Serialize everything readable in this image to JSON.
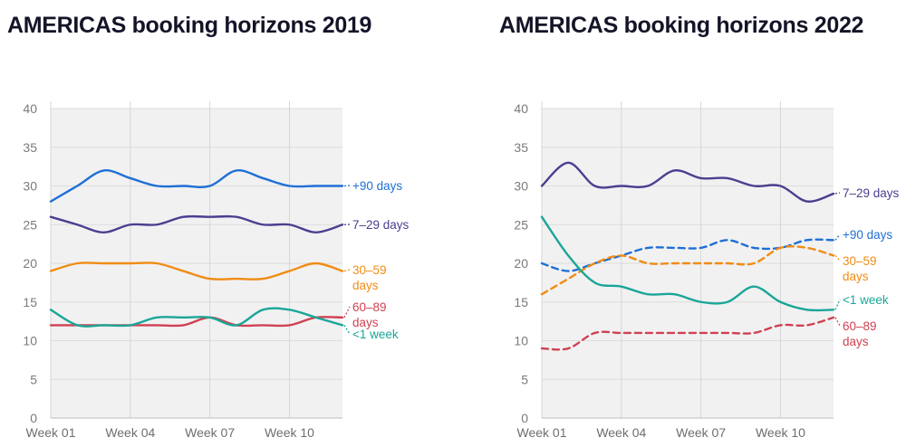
{
  "chart_data": [
    {
      "type": "line",
      "title": "AMERICAS booking horizons 2019",
      "xlabel": "",
      "ylabel": "",
      "ylim": [
        0,
        40
      ],
      "yticks": [
        0,
        5,
        10,
        15,
        20,
        25,
        30,
        35,
        40
      ],
      "x": [
        1,
        2,
        3,
        4,
        5,
        6,
        7,
        8,
        9,
        10,
        11,
        12
      ],
      "xtick_labels": [
        "Week 01",
        "Week 04",
        "Week 07",
        "Week 10"
      ],
      "xtick_positions": [
        1,
        4,
        7,
        10
      ],
      "grid": true,
      "legend": "inline labels at line ends",
      "series": [
        {
          "name": "+90 days",
          "color": "#1f6fd6",
          "dashed": false,
          "values": [
            28,
            30,
            32,
            31,
            30,
            30,
            30,
            32,
            31,
            30,
            30,
            30
          ]
        },
        {
          "name": "7–29 days",
          "color": "#4a3f8f",
          "dashed": false,
          "values": [
            26,
            25,
            24,
            25,
            25,
            26,
            26,
            26,
            25,
            25,
            24,
            25
          ]
        },
        {
          "name": "30–59 days",
          "color": "#f08c14",
          "dashed": false,
          "values": [
            19,
            20,
            20,
            20,
            20,
            19,
            18,
            18,
            18,
            19,
            20,
            19
          ]
        },
        {
          "name": "60–89 days",
          "color": "#d04152",
          "dashed": false,
          "values": [
            12,
            12,
            12,
            12,
            12,
            12,
            13,
            12,
            12,
            12,
            13,
            13
          ]
        },
        {
          "name": "<1 week",
          "color": "#1aa697",
          "dashed": false,
          "values": [
            14,
            12,
            12,
            12,
            13,
            13,
            13,
            12,
            14,
            14,
            13,
            12
          ]
        }
      ],
      "end_labels": [
        {
          "lines": [
            "+90 days"
          ],
          "color": "#1f6fd6"
        },
        {
          "lines": [
            "7–29 days"
          ],
          "color": "#4a3f8f"
        },
        {
          "lines": [
            "30–59",
            "days"
          ],
          "color": "#f08c14"
        },
        {
          "lines": [
            "60–89",
            "days"
          ],
          "color": "#d04152"
        },
        {
          "lines": [
            "<1 week"
          ],
          "color": "#1aa697"
        }
      ]
    },
    {
      "type": "line",
      "title": "AMERICAS booking horizons 2022",
      "xlabel": "",
      "ylabel": "",
      "ylim": [
        0,
        40
      ],
      "yticks": [
        0,
        5,
        10,
        15,
        20,
        25,
        30,
        35,
        40
      ],
      "x": [
        1,
        2,
        3,
        4,
        5,
        6,
        7,
        8,
        9,
        10,
        11,
        12
      ],
      "xtick_labels": [
        "Week 01",
        "Week 04",
        "Week 07",
        "Week 10"
      ],
      "xtick_positions": [
        1,
        4,
        7,
        10
      ],
      "grid": true,
      "legend": "inline labels at line ends",
      "series": [
        {
          "name": "7–29 days",
          "color": "#4a3f8f",
          "dashed": false,
          "values": [
            30,
            33,
            30,
            30,
            30,
            32,
            31,
            31,
            30,
            30,
            28,
            29
          ]
        },
        {
          "name": "+90 days",
          "color": "#1f6fd6",
          "dashed": true,
          "values": [
            20,
            19,
            20,
            21,
            22,
            22,
            22,
            23,
            22,
            22,
            23,
            23
          ]
        },
        {
          "name": "30–59 days",
          "color": "#f08c14",
          "dashed": true,
          "values": [
            16,
            18,
            20,
            21,
            20,
            20,
            20,
            20,
            20,
            22,
            22,
            21
          ]
        },
        {
          "name": "<1 week",
          "color": "#1aa697",
          "dashed": false,
          "values": [
            26,
            21,
            17.5,
            17,
            16,
            16,
            15,
            15,
            17,
            15,
            14,
            14
          ]
        },
        {
          "name": "60–89 days",
          "color": "#d04152",
          "dashed": true,
          "values": [
            9,
            9,
            11,
            11,
            11,
            11,
            11,
            11,
            11,
            12,
            12,
            13
          ]
        }
      ],
      "end_labels": [
        {
          "lines": [
            "7–29 days"
          ],
          "color": "#4a3f8f"
        },
        {
          "lines": [
            "+90 days"
          ],
          "color": "#1f6fd6"
        },
        {
          "lines": [
            "30–59",
            "days"
          ],
          "color": "#f08c14"
        },
        {
          "lines": [
            "<1 week"
          ],
          "color": "#1aa697"
        },
        {
          "lines": [
            "60–89",
            "days"
          ],
          "color": "#d04152"
        }
      ]
    }
  ]
}
